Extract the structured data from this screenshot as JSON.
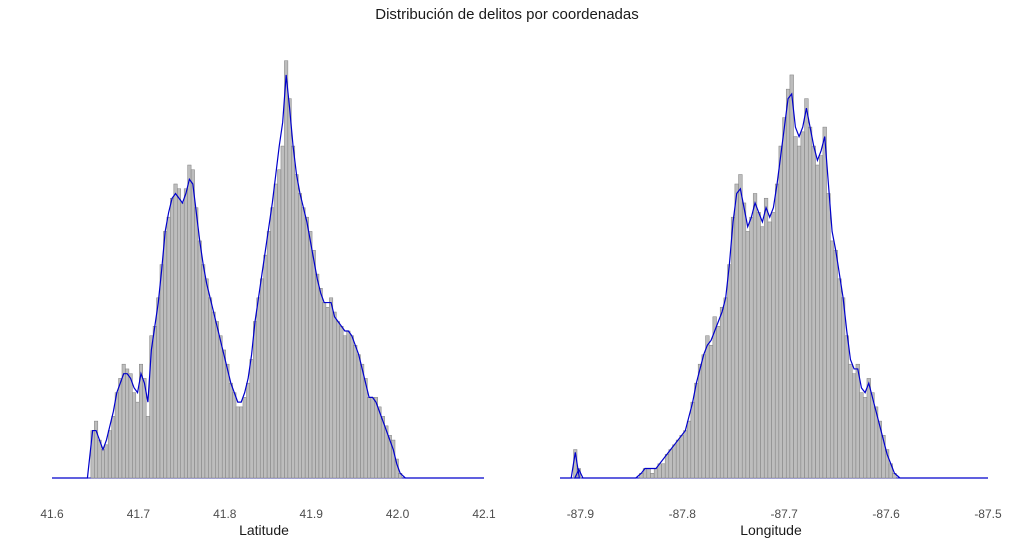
{
  "title": "Distribución de delitos por coordenadas",
  "colors": {
    "bar_fill": "#bdbdbd",
    "bar_stroke": "#7f7f7f",
    "density": "#0000cc",
    "text": "#4d4d4d"
  },
  "chart_data": [
    {
      "type": "bar",
      "subtype": "histogram-with-density",
      "xlabel": "Latitude",
      "xlim": [
        41.6,
        42.1
      ],
      "x_ticks": [
        "41.6",
        "41.7",
        "41.8",
        "41.9",
        "42.0",
        "42.1"
      ],
      "bin_start": 41.645,
      "bin_width": 0.004,
      "heights": [
        0.1,
        0.12,
        0.08,
        0.06,
        0.07,
        0.1,
        0.13,
        0.18,
        0.21,
        0.24,
        0.23,
        0.22,
        0.18,
        0.16,
        0.24,
        0.21,
        0.13,
        0.3,
        0.32,
        0.38,
        0.45,
        0.52,
        0.55,
        0.59,
        0.62,
        0.61,
        0.58,
        0.61,
        0.66,
        0.65,
        0.57,
        0.5,
        0.45,
        0.42,
        0.38,
        0.35,
        0.33,
        0.3,
        0.27,
        0.24,
        0.2,
        0.18,
        0.15,
        0.15,
        0.17,
        0.2,
        0.25,
        0.33,
        0.38,
        0.42,
        0.47,
        0.52,
        0.57,
        0.62,
        0.65,
        0.7,
        0.88,
        0.8,
        0.7,
        0.64,
        0.6,
        0.57,
        0.55,
        0.52,
        0.48,
        0.43,
        0.4,
        0.37,
        0.36,
        0.38,
        0.35,
        0.33,
        0.32,
        0.3,
        0.31,
        0.3,
        0.28,
        0.26,
        0.24,
        0.21,
        0.17,
        0.17,
        0.17,
        0.15,
        0.13,
        0.11,
        0.09,
        0.08,
        0.04,
        0.01
      ],
      "density": [
        0.1,
        0.1,
        0.08,
        0.06,
        0.08,
        0.11,
        0.14,
        0.18,
        0.2,
        0.22,
        0.22,
        0.21,
        0.19,
        0.18,
        0.22,
        0.2,
        0.16,
        0.27,
        0.32,
        0.37,
        0.44,
        0.52,
        0.56,
        0.59,
        0.6,
        0.59,
        0.58,
        0.6,
        0.63,
        0.62,
        0.56,
        0.5,
        0.45,
        0.41,
        0.38,
        0.35,
        0.32,
        0.29,
        0.26,
        0.23,
        0.2,
        0.18,
        0.16,
        0.16,
        0.18,
        0.21,
        0.26,
        0.33,
        0.38,
        0.43,
        0.48,
        0.53,
        0.58,
        0.64,
        0.7,
        0.75,
        0.85,
        0.78,
        0.7,
        0.64,
        0.6,
        0.57,
        0.54,
        0.5,
        0.46,
        0.42,
        0.39,
        0.37,
        0.37,
        0.37,
        0.34,
        0.33,
        0.32,
        0.31,
        0.31,
        0.3,
        0.28,
        0.26,
        0.23,
        0.2,
        0.17,
        0.17,
        0.16,
        0.14,
        0.12,
        0.1,
        0.08,
        0.06,
        0.03,
        0.01
      ]
    },
    {
      "type": "bar",
      "subtype": "histogram-with-density",
      "xlabel": "Longitude",
      "xlim": [
        -87.92,
        -87.5
      ],
      "x_ticks": [
        "-87.9",
        "-87.8",
        "-87.7",
        "-87.6",
        "-87.5"
      ],
      "bin_start": -87.842,
      "bin_width": 0.0036,
      "outliers": [
        {
          "x": -87.905,
          "height": 0.06
        },
        {
          "x": -87.9015,
          "height": 0.02
        }
      ],
      "heights": [
        0.01,
        0.02,
        0.02,
        0.01,
        0.02,
        0.03,
        0.03,
        0.05,
        0.06,
        0.07,
        0.08,
        0.09,
        0.1,
        0.12,
        0.16,
        0.2,
        0.24,
        0.26,
        0.3,
        0.28,
        0.34,
        0.32,
        0.36,
        0.38,
        0.45,
        0.55,
        0.62,
        0.64,
        0.58,
        0.52,
        0.55,
        0.6,
        0.56,
        0.53,
        0.59,
        0.54,
        0.56,
        0.62,
        0.7,
        0.76,
        0.82,
        0.85,
        0.72,
        0.7,
        0.73,
        0.8,
        0.74,
        0.7,
        0.66,
        0.68,
        0.74,
        0.6,
        0.5,
        0.48,
        0.42,
        0.38,
        0.3,
        0.24,
        0.22,
        0.24,
        0.18,
        0.17,
        0.21,
        0.18,
        0.15,
        0.12,
        0.09,
        0.06,
        0.03,
        0.01
      ],
      "density": [
        0.01,
        0.02,
        0.02,
        0.02,
        0.02,
        0.03,
        0.04,
        0.05,
        0.06,
        0.07,
        0.08,
        0.09,
        0.1,
        0.13,
        0.16,
        0.2,
        0.23,
        0.26,
        0.28,
        0.29,
        0.31,
        0.33,
        0.35,
        0.38,
        0.45,
        0.54,
        0.6,
        0.61,
        0.57,
        0.53,
        0.55,
        0.58,
        0.56,
        0.54,
        0.57,
        0.55,
        0.57,
        0.62,
        0.68,
        0.74,
        0.8,
        0.81,
        0.74,
        0.72,
        0.74,
        0.78,
        0.74,
        0.7,
        0.67,
        0.69,
        0.72,
        0.62,
        0.52,
        0.48,
        0.43,
        0.38,
        0.31,
        0.25,
        0.23,
        0.23,
        0.19,
        0.18,
        0.2,
        0.17,
        0.14,
        0.11,
        0.08,
        0.05,
        0.03,
        0.01
      ]
    }
  ]
}
